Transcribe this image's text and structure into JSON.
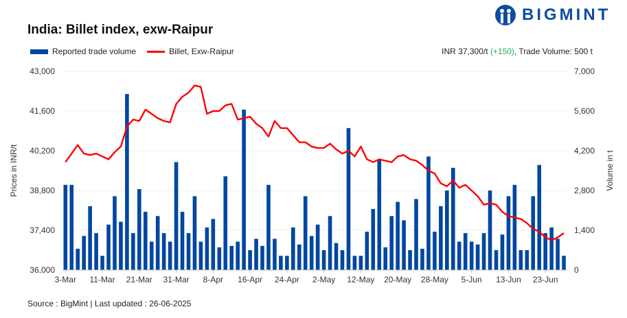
{
  "header": {
    "title": "India: Billet index, exw-Raipur",
    "logo_text": "BIGMINT",
    "summary_price": "INR 37,300/t",
    "summary_change": "(+150)",
    "summary_volume": ", Trade Volume: 500 t"
  },
  "footer": {
    "source": "Source : BigMint | Last updated : 26-06-2025"
  },
  "colors": {
    "bar": "#0047a0",
    "line": "#ff0000",
    "change": "#22b14c",
    "logo": "#0c4da2"
  },
  "chart_data": {
    "type": "bar+line",
    "title": "India: Billet index, exw-Raipur",
    "ylabel": "Prices in INR/t",
    "y2label": "Volume in t",
    "ylim": [
      36000,
      43000
    ],
    "y2lim": [
      0,
      7000
    ],
    "yticks": [
      "36,000",
      "37,400",
      "38,800",
      "40,200",
      "41,600",
      "43,000"
    ],
    "y2ticks": [
      "0",
      "1,400",
      "2,800",
      "4,200",
      "5,600",
      "7,000"
    ],
    "x_tick_labels": [
      {
        "i": 0,
        "label": "3-Mar"
      },
      {
        "i": 6,
        "label": "11-Mar"
      },
      {
        "i": 12,
        "label": "21-Mar"
      },
      {
        "i": 18,
        "label": "31-Mar"
      },
      {
        "i": 24,
        "label": "8-Apr"
      },
      {
        "i": 30,
        "label": "16-Apr"
      },
      {
        "i": 36,
        "label": "24-Apr"
      },
      {
        "i": 42,
        "label": "2-May"
      },
      {
        "i": 48,
        "label": "12-May"
      },
      {
        "i": 54,
        "label": "20-May"
      },
      {
        "i": 60,
        "label": "28-May"
      },
      {
        "i": 66,
        "label": "5-Jun"
      },
      {
        "i": 72,
        "label": "13-Jun"
      },
      {
        "i": 78,
        "label": "23-Jun"
      }
    ],
    "grid": true,
    "legend": "top-left",
    "series": [
      {
        "name": "Reported trade volume",
        "type": "bar",
        "axis": "right",
        "values": [
          3000,
          3000,
          750,
          1200,
          2250,
          1300,
          500,
          1600,
          2600,
          1700,
          6200,
          1300,
          2850,
          2050,
          1000,
          1900,
          1300,
          1000,
          3800,
          2050,
          1300,
          2600,
          1000,
          1500,
          1800,
          800,
          3300,
          850,
          1000,
          5650,
          700,
          1100,
          850,
          3000,
          1100,
          500,
          500,
          1500,
          900,
          2600,
          1200,
          1600,
          700,
          1900,
          950,
          700,
          5000,
          500,
          500,
          1350,
          2150,
          3900,
          800,
          1900,
          2400,
          1750,
          700,
          2500,
          750,
          4000,
          1350,
          2250,
          2800,
          3600,
          1000,
          1300,
          1000,
          900,
          1300,
          2800,
          700,
          1250,
          2600,
          3000,
          700,
          700,
          2600,
          3700,
          1300,
          1500,
          1100,
          500
        ]
      },
      {
        "name": "Billet, Exw-Raipur",
        "type": "line",
        "axis": "left",
        "values": [
          39800,
          40100,
          40400,
          40100,
          40050,
          40100,
          40000,
          39900,
          40150,
          40350,
          41050,
          41300,
          41250,
          41650,
          41500,
          41350,
          41250,
          41200,
          41850,
          42100,
          42250,
          42500,
          42450,
          41500,
          41600,
          41600,
          41800,
          41850,
          41300,
          41350,
          41400,
          41150,
          41000,
          40700,
          41250,
          41000,
          41000,
          40750,
          40500,
          40500,
          40350,
          40300,
          40300,
          40450,
          40250,
          40100,
          40200,
          40000,
          40350,
          39900,
          39800,
          39900,
          39850,
          39800,
          40000,
          40050,
          39900,
          39850,
          39700,
          39500,
          39400,
          39050,
          38950,
          39150,
          38900,
          39000,
          38800,
          38600,
          38300,
          38350,
          38300,
          38050,
          37900,
          37850,
          37800,
          37650,
          37450,
          37350,
          37150,
          37050,
          37150,
          37300
        ]
      }
    ]
  }
}
